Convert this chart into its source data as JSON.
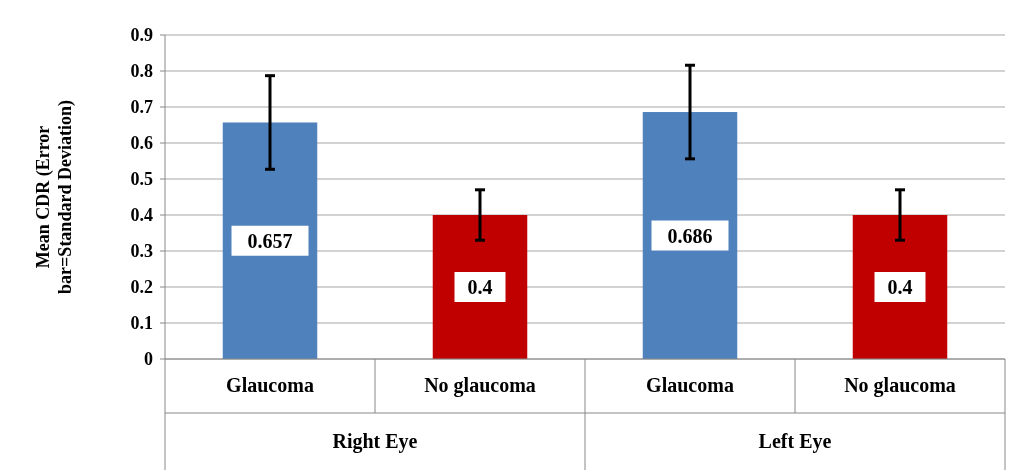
{
  "chart_data": {
    "type": "bar",
    "ylabel": "Mean CDR (Error bar=Standard Deviation)",
    "categories": [
      "Glaucoma",
      "No glaucoma",
      "Glaucoma",
      "No glaucoma"
    ],
    "values": [
      0.657,
      0.4,
      0.686,
      0.4
    ],
    "colors": [
      "#4f81bd",
      "#c00000",
      "#4f81bd",
      "#c00000"
    ],
    "errors": [
      0.13,
      0.07,
      0.13,
      0.07
    ],
    "data_labels": true,
    "annotations": [
      "Right Eye",
      "Left Eye"
    ],
    "ylim": [
      0,
      0.9
    ],
    "yticks": [
      0,
      0.1,
      0.2,
      0.3,
      0.4,
      0.5,
      0.6,
      0.7,
      0.8,
      0.9
    ],
    "grid": "y"
  }
}
